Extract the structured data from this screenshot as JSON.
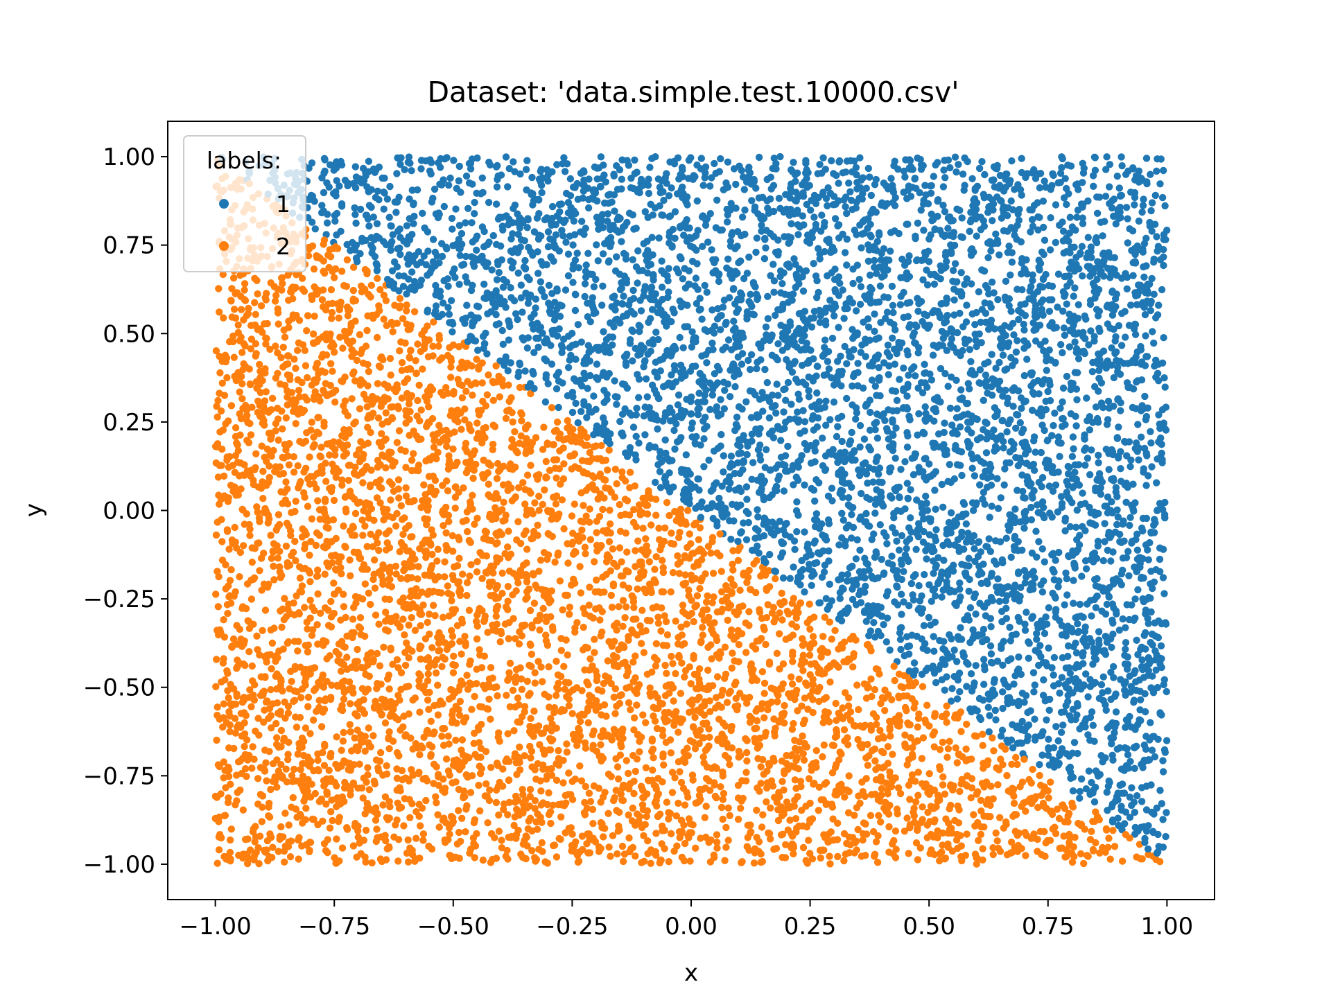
{
  "chart_data": {
    "type": "scatter",
    "title": "Dataset: 'data.simple.test.10000.csv'",
    "xlabel": "x",
    "ylabel": "y",
    "xlim": [
      -1.1,
      1.1
    ],
    "ylim": [
      -1.1,
      1.1
    ],
    "x_ticks": [
      -1.0,
      -0.75,
      -0.5,
      -0.25,
      0.0,
      0.25,
      0.5,
      0.75,
      1.0
    ],
    "x_tick_labels": [
      "−1.00",
      "−0.75",
      "−0.50",
      "−0.25",
      "0.00",
      "0.25",
      "0.50",
      "0.75",
      "1.00"
    ],
    "y_ticks": [
      1.0,
      0.75,
      0.5,
      0.25,
      0.0,
      -0.25,
      -0.5,
      -0.75,
      -1.0
    ],
    "y_tick_labels": [
      "1.00",
      "0.75",
      "0.50",
      "0.25",
      "0.00",
      "−0.25",
      "−0.50",
      "−0.75",
      "−1.00"
    ],
    "grid": false,
    "legend": {
      "title": "labels:",
      "placement": "top-left",
      "entries": [
        {
          "label": "1",
          "color": "#1f77b4"
        },
        {
          "label": "2",
          "color": "#ff7f0e"
        }
      ]
    },
    "point_count": 10000,
    "x_range": [
      -1.0,
      1.0
    ],
    "y_range": [
      -1.0,
      1.0
    ],
    "decision_boundary": {
      "slope": -1.0,
      "intercept": 0.0,
      "above_class": "1",
      "below_class": "2"
    },
    "series": [
      {
        "name": "1",
        "color": "#1f77b4",
        "region": "y > -x"
      },
      {
        "name": "2",
        "color": "#ff7f0e",
        "region": "y < -x"
      }
    ]
  }
}
